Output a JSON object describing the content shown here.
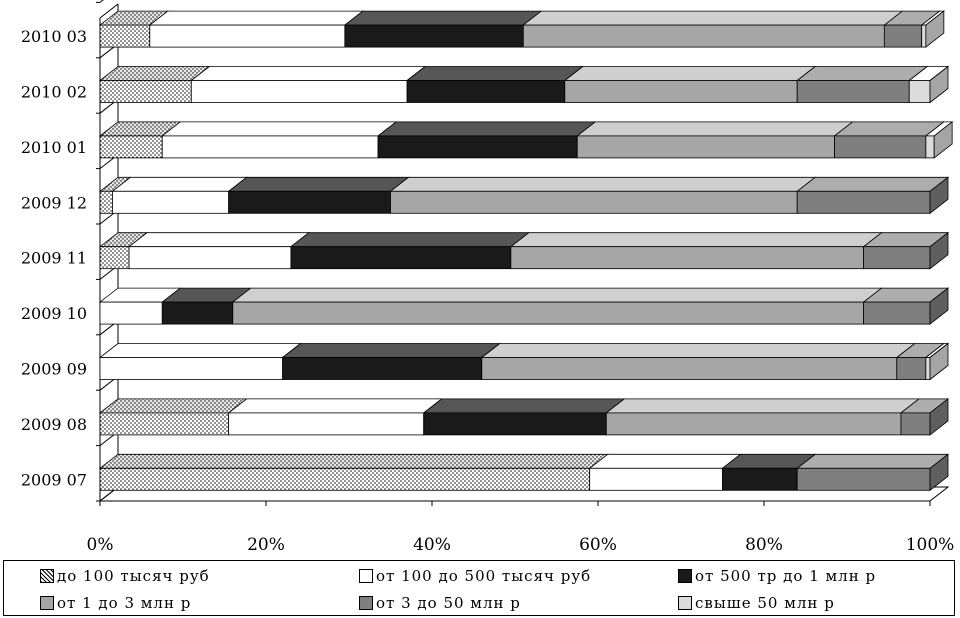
{
  "chart_data": {
    "type": "bar",
    "orientation": "horizontal",
    "stacked": "percent",
    "style": "3d",
    "categories": [
      "2009 07",
      "2009 08",
      "2009 09",
      "2009 10",
      "2009 11",
      "2009 12",
      "2010 01",
      "2010 02",
      "2010 03"
    ],
    "x_ticks": [
      "0%",
      "20%",
      "40%",
      "60%",
      "80%",
      "100%"
    ],
    "xlim": [
      0,
      100
    ],
    "grid": false,
    "legend_position": "bottom",
    "series": [
      {
        "name": "до 100 тысяч руб",
        "color": "#ffffff",
        "pattern": "dots",
        "values": [
          59,
          15.5,
          0,
          0,
          3.5,
          1.5,
          7.5,
          11,
          6
        ]
      },
      {
        "name": "от 100 до 500 тысяч руб",
        "color": "#ffffff",
        "values": [
          16,
          23.5,
          22,
          7.5,
          19.5,
          14,
          26,
          26,
          23.5
        ]
      },
      {
        "name": "от 500 тр до 1 млн р",
        "color": "#1a1a1a",
        "values": [
          9,
          22,
          24,
          8.5,
          26.5,
          19.5,
          24,
          19,
          21.5
        ]
      },
      {
        "name": "от 1 до 3 млн р",
        "color": "#a6a6a6",
        "values": [
          0,
          35.5,
          50,
          76,
          42.5,
          49,
          31,
          28,
          43.5
        ]
      },
      {
        "name": "от 3 до 50 млн р",
        "color": "#7f7f7f",
        "values": [
          16,
          3.5,
          3.5,
          8,
          8,
          16,
          11,
          13.5,
          4.5
        ]
      },
      {
        "name": "свыше 50 млн р",
        "color": "#dcdcdc",
        "values": [
          0,
          0,
          0.5,
          0,
          0,
          0,
          1,
          2.5,
          0.5
        ]
      }
    ]
  }
}
